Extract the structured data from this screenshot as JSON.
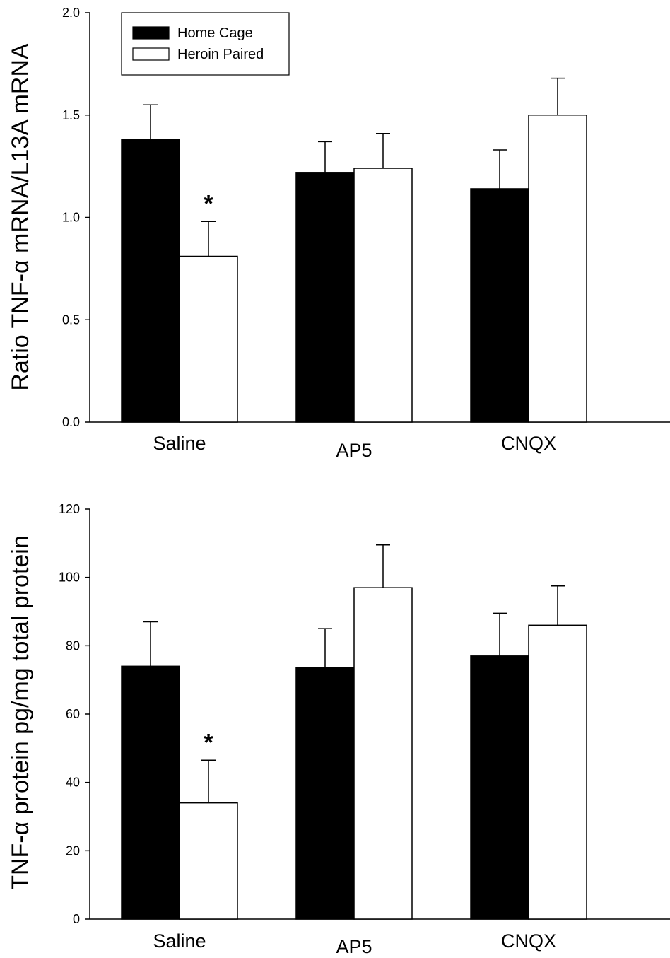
{
  "colors": {
    "home_cage_fill": "#000000",
    "heroin_paired_fill": "#ffffff",
    "outline": "#000000"
  },
  "chart_data": [
    {
      "type": "bar",
      "ylabel": "Ratio TNF-α mRNA/L13A mRNA",
      "xlabel": "",
      "categories": [
        "Saline",
        "AP5",
        "CNQX"
      ],
      "ylim": [
        0,
        2.0
      ],
      "yticks": [
        0.0,
        0.5,
        1.0,
        1.5,
        2.0
      ],
      "ytick_labels": [
        "0.0",
        "0.5",
        "1.0",
        "1.5",
        "2.0"
      ],
      "legend": {
        "placement": "top-left",
        "entries": [
          "Home Cage",
          "Heroin Paired"
        ]
      },
      "series": [
        {
          "name": "Home Cage",
          "values": [
            1.38,
            1.22,
            1.14
          ],
          "errors": [
            0.17,
            0.15,
            0.19
          ]
        },
        {
          "name": "Heroin Paired",
          "values": [
            0.81,
            1.24,
            1.5
          ],
          "errors": [
            0.17,
            0.17,
            0.18
          ]
        }
      ],
      "annotations": [
        {
          "text": "*",
          "category": "Saline",
          "series": "Heroin Paired"
        }
      ],
      "grid": false
    },
    {
      "type": "bar",
      "ylabel": "TNF-α protein pg/mg total protein",
      "xlabel": "",
      "categories": [
        "Saline",
        "AP5",
        "CNQX"
      ],
      "ylim": [
        0,
        120
      ],
      "yticks": [
        0,
        20,
        40,
        60,
        80,
        100,
        120
      ],
      "ytick_labels": [
        "0",
        "20",
        "40",
        "60",
        "80",
        "100",
        "120"
      ],
      "series": [
        {
          "name": "Home Cage",
          "values": [
            74,
            73.5,
            77
          ],
          "errors": [
            13,
            11.5,
            12.5
          ]
        },
        {
          "name": "Heroin Paired",
          "values": [
            34,
            97,
            86
          ],
          "errors": [
            12.5,
            12.5,
            11.5
          ]
        }
      ],
      "annotations": [
        {
          "text": "*",
          "category": "Saline",
          "series": "Heroin Paired"
        }
      ],
      "grid": false
    }
  ]
}
